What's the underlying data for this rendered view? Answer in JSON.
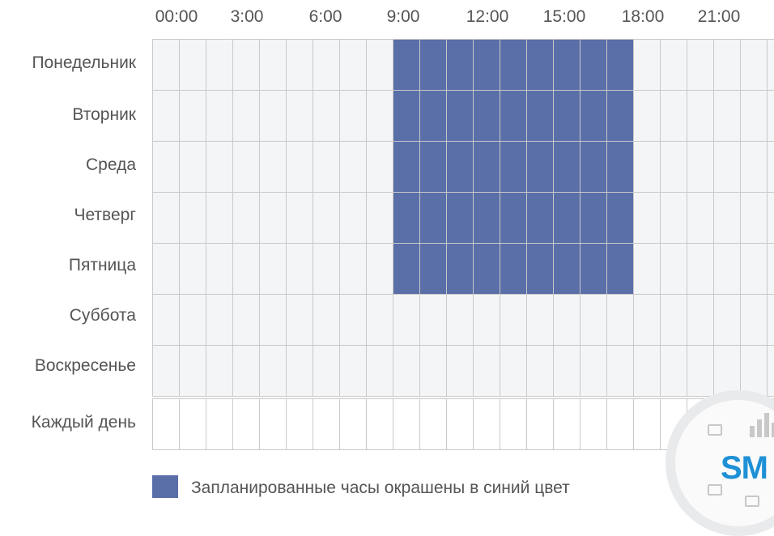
{
  "hours": [
    "00:00",
    "3:00",
    "6:00",
    "9:00",
    "12:00",
    "15:00",
    "18:00",
    "21:00"
  ],
  "days": [
    "Понедельник",
    "Вторник",
    "Среда",
    "Четверг",
    "Пятница",
    "Суббота",
    "Воскресенье"
  ],
  "everyday_label": "Каждый день",
  "schedule": {
    "scheduled_days": [
      "Понедельник",
      "Вторник",
      "Среда",
      "Четверг",
      "Пятница"
    ],
    "start_hour": 9,
    "end_hour": 18,
    "color": "#5a6ea8"
  },
  "legend": {
    "text": "Запланированные часы окрашены в синий цвет"
  },
  "watermark": {
    "text": "SM"
  }
}
